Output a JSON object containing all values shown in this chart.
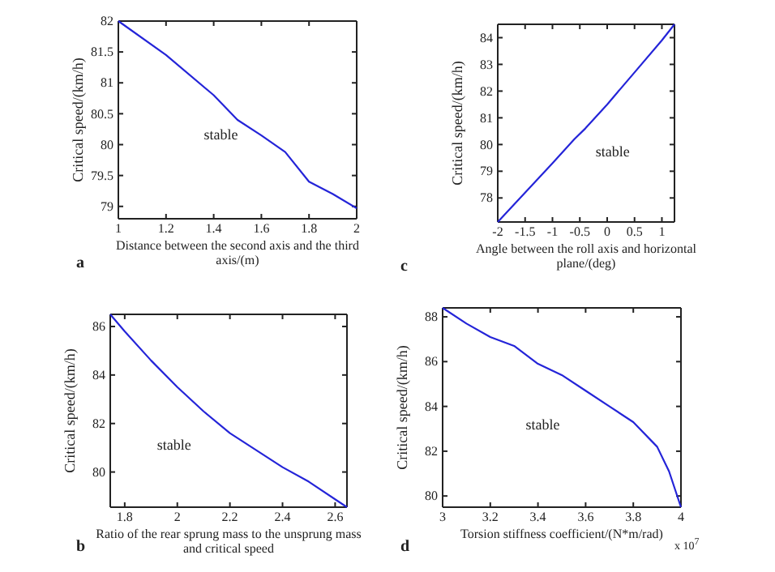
{
  "chart_data": [
    {
      "type": "line",
      "xlabel": "Distance between the second axis and the third axis/(m)",
      "ylabel": "Critical speed/(km/h)",
      "xlim": [
        1,
        2
      ],
      "xticks": [
        1,
        1.2,
        1.4,
        1.6,
        1.8,
        2
      ],
      "ylim": [
        78.8,
        82
      ],
      "yticks": [
        79,
        79.5,
        80,
        80.5,
        81,
        81.5,
        82
      ],
      "x": [
        1,
        1.2,
        1.4,
        1.5,
        1.6,
        1.7,
        1.8,
        1.9,
        2
      ],
      "series": [
        {
          "color": "#2424d8",
          "values": [
            82,
            81.45,
            80.8,
            80.4,
            80.15,
            79.88,
            79.4,
            79.2,
            78.97
          ]
        }
      ],
      "annotations": [
        "stable",
        "a"
      ]
    },
    {
      "type": "line",
      "xlabel": "Angle between the roll axis and horizontal plane/(deg)",
      "ylabel": "Critical speed/(km/h)",
      "xlim": [
        -2,
        1.23
      ],
      "xticks": [
        -2,
        -1.5,
        -1,
        -0.5,
        0,
        0.5,
        1
      ],
      "ylim": [
        77.1,
        84.5
      ],
      "yticks": [
        78,
        79,
        80,
        81,
        82,
        83,
        84
      ],
      "x": [
        -2,
        -1.5,
        -1,
        -0.6,
        -0.4,
        0,
        0.5,
        1,
        1.23
      ],
      "series": [
        {
          "color": "#2424d8",
          "values": [
            77.1,
            78.2,
            79.3,
            80.2,
            80.6,
            81.5,
            82.7,
            83.9,
            84.5
          ]
        }
      ],
      "annotations": [
        "stable",
        "c"
      ]
    },
    {
      "type": "line",
      "xlabel": "Ratio of the rear sprung mass to the unsprung mass and critical speed",
      "ylabel": "Critical speed/(km/h)",
      "xlim": [
        1.745,
        2.645
      ],
      "xticks": [
        1.8,
        2,
        2.2,
        2.4,
        2.6
      ],
      "ylim": [
        78.55,
        86.5
      ],
      "yticks": [
        80,
        82,
        84,
        86
      ],
      "x": [
        1.745,
        1.8,
        1.9,
        2,
        2.1,
        2.2,
        2.3,
        2.4,
        2.5,
        2.645
      ],
      "series": [
        {
          "color": "#2424d8",
          "values": [
            86.5,
            85.8,
            84.6,
            83.5,
            82.5,
            81.6,
            80.9,
            80.2,
            79.6,
            78.55
          ]
        }
      ],
      "annotations": [
        "stable",
        "b"
      ]
    },
    {
      "type": "line",
      "xlabel": "Torsion stiffness coefficient/(N*m/rad)",
      "ylabel": "Critical speed/(km/h)",
      "xlim": [
        3,
        4
      ],
      "xticks": [
        3,
        3.2,
        3.4,
        3.6,
        3.8,
        4
      ],
      "ylim": [
        79.5,
        88.4
      ],
      "yticks": [
        80,
        82,
        84,
        86,
        88
      ],
      "x": [
        3,
        3.1,
        3.2,
        3.3,
        3.4,
        3.5,
        3.6,
        3.7,
        3.8,
        3.9,
        3.95,
        4
      ],
      "series": [
        {
          "color": "#2424d8",
          "values": [
            88.4,
            87.7,
            87.1,
            86.7,
            85.9,
            85.4,
            84.7,
            84,
            83.3,
            82.2,
            81.1,
            79.5
          ]
        }
      ],
      "annotations": [
        "stable",
        "d",
        "x 10$^{7}$"
      ]
    }
  ]
}
